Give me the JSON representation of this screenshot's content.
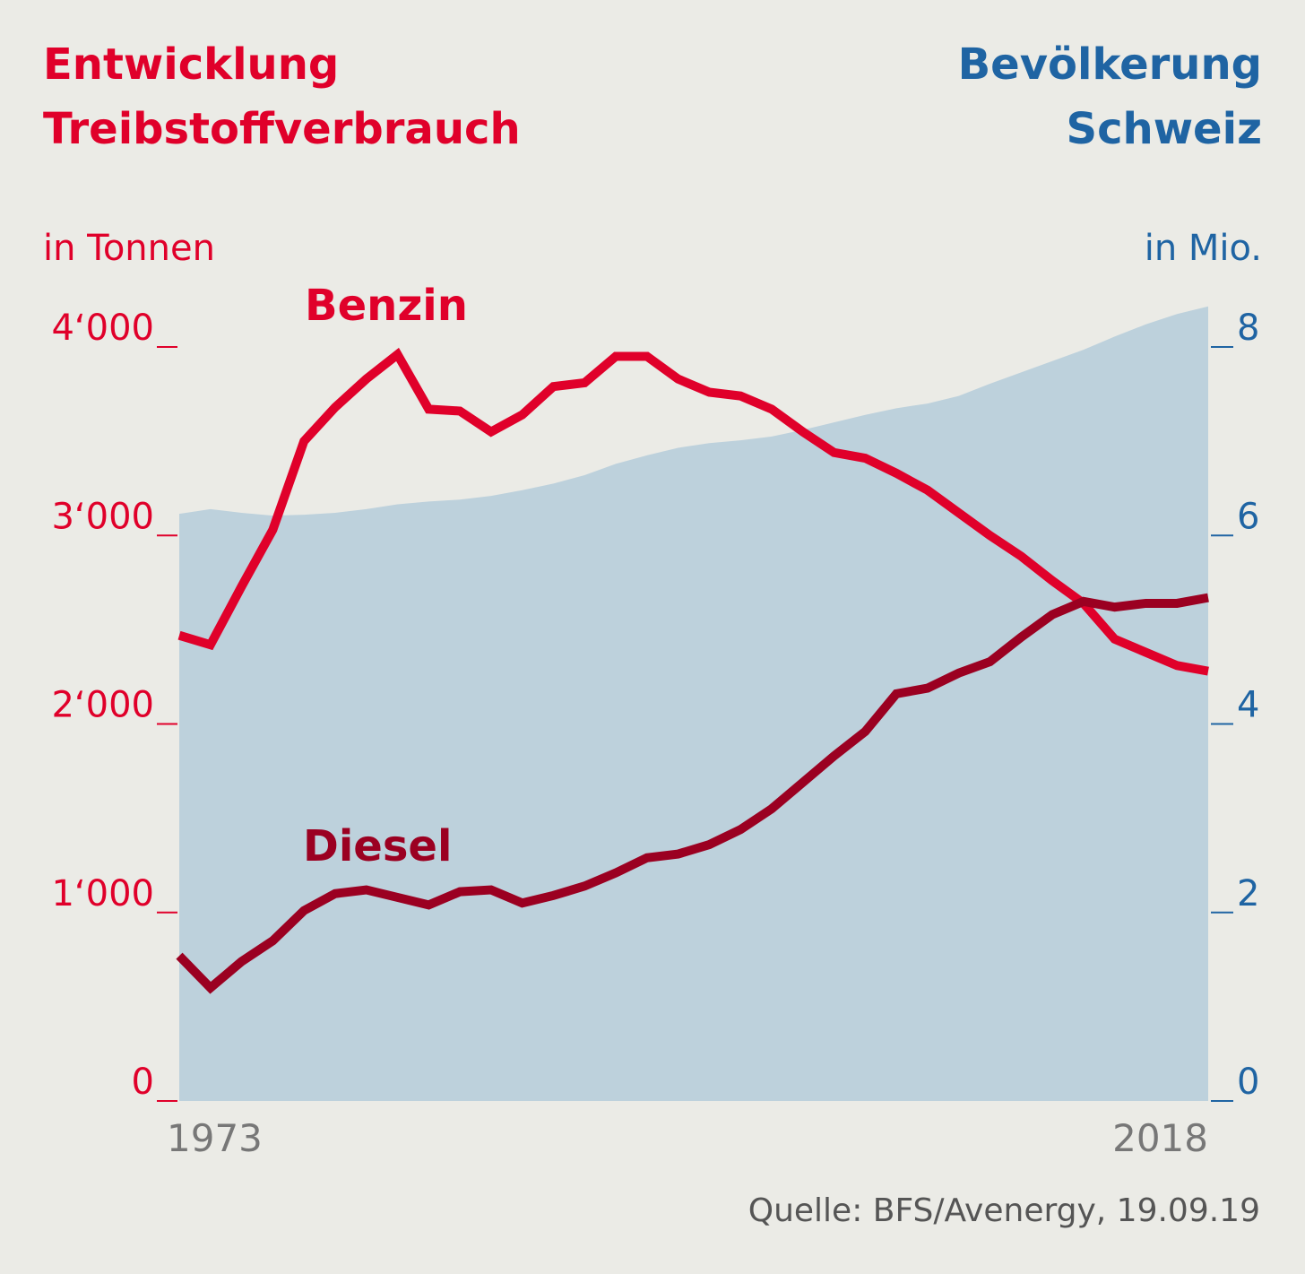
{
  "chart_data": {
    "type": "line",
    "title": [
      "Entwicklung",
      "Treibstoffverbrauch"
    ],
    "title_right": [
      "Bevölkerung",
      "Schweiz"
    ],
    "ylabel": "in Tonnen",
    "y2label": "in Mio.",
    "source": "Quelle: BFS/Avenergy, 19.09.19",
    "categories": [
      "1973",
      null,
      null,
      null,
      null,
      null,
      null,
      null,
      null,
      null,
      null,
      null,
      null,
      null,
      null,
      null,
      null,
      null,
      null,
      null,
      null,
      null,
      null,
      null,
      null,
      null,
      null,
      null,
      null,
      null,
      null,
      null,
      null,
      "2018"
    ],
    "ylim": [
      0,
      4000
    ],
    "yticks": [
      0,
      {
        "value": 1000,
        "label": "1‘000"
      },
      {
        "value": 2000,
        "label": "2‘000"
      },
      {
        "value": 3000,
        "label": "3‘000"
      },
      {
        "value": 4000,
        "label": "4‘000"
      }
    ],
    "y2lim": [
      0,
      8
    ],
    "y2ticks": [
      0,
      2,
      4,
      6,
      8
    ],
    "series": [
      {
        "name": "Bevölkerung",
        "kind": "area",
        "axis": "y2",
        "color": "#bdd1dc",
        "values": [
          6.23,
          6.28,
          6.24,
          6.21,
          6.22,
          6.24,
          6.28,
          6.33,
          6.36,
          6.38,
          6.42,
          6.48,
          6.55,
          6.64,
          6.76,
          6.85,
          6.93,
          6.98,
          7.01,
          7.05,
          7.12,
          7.2,
          7.28,
          7.35,
          7.4,
          7.48,
          7.61,
          7.73,
          7.85,
          7.97,
          8.11,
          8.24,
          8.35,
          8.43
        ]
      },
      {
        "name": "Benzin",
        "color": "#e0002a",
        "values": [
          2470,
          2420,
          2730,
          3030,
          3500,
          3680,
          3830,
          3960,
          3670,
          3660,
          3550,
          3640,
          3790,
          3810,
          3950,
          3950,
          3830,
          3760,
          3740,
          3670,
          3550,
          3440,
          3410,
          3330,
          3240,
          3120,
          3000,
          2890,
          2760,
          2640,
          2450,
          2380,
          2310,
          2280
        ]
      },
      {
        "name": "Diesel",
        "color": "#9b0021",
        "values": [
          770,
          600,
          740,
          850,
          1010,
          1100,
          1120,
          1080,
          1040,
          1110,
          1120,
          1050,
          1090,
          1140,
          1210,
          1290,
          1310,
          1360,
          1440,
          1550,
          1690,
          1830,
          1960,
          2160,
          2190,
          2270,
          2330,
          2460,
          2580,
          2650,
          2620,
          2640,
          2640,
          2670
        ]
      }
    ]
  }
}
